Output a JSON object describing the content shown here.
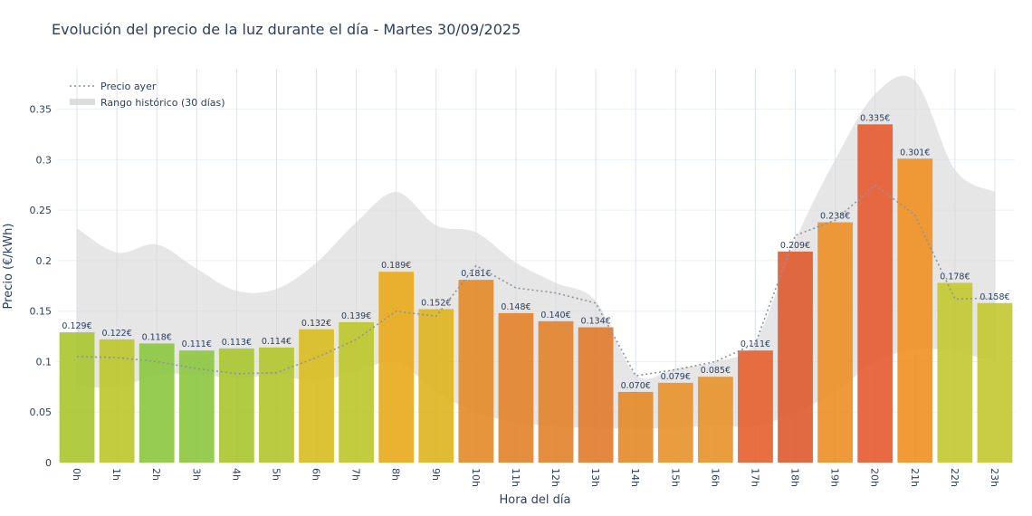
{
  "chart_data": {
    "type": "bar",
    "title": "Evolución del precio de la luz durante el día - Martes 30/09/2025",
    "xlabel": "Hora del día",
    "ylabel": "Precio (€/kWh)",
    "ylim": [
      0,
      0.39
    ],
    "yticks": [
      0,
      0.05,
      0.1,
      0.15,
      0.2,
      0.25,
      0.3,
      0.35
    ],
    "ytick_labels": [
      "0",
      "0.05",
      "0.1",
      "0.15",
      "0.2",
      "0.25",
      "0.3",
      "0.35"
    ],
    "categories": [
      "0h",
      "1h",
      "2h",
      "3h",
      "4h",
      "5h",
      "6h",
      "7h",
      "8h",
      "9h",
      "10h",
      "11h",
      "12h",
      "13h",
      "14h",
      "15h",
      "16h",
      "17h",
      "18h",
      "19h",
      "20h",
      "21h",
      "22h",
      "23h"
    ],
    "values": [
      0.129,
      0.122,
      0.118,
      0.111,
      0.113,
      0.114,
      0.132,
      0.139,
      0.189,
      0.152,
      0.181,
      0.148,
      0.14,
      0.134,
      0.07,
      0.079,
      0.085,
      0.111,
      0.209,
      0.238,
      0.335,
      0.301,
      0.178,
      0.158
    ],
    "value_labels": [
      "0.129€",
      "0.122€",
      "0.118€",
      "0.111€",
      "0.113€",
      "0.114€",
      "0.132€",
      "0.139€",
      "0.189€",
      "0.152€",
      "0.181€",
      "0.148€",
      "0.140€",
      "0.134€",
      "0.070€",
      "0.079€",
      "0.085€",
      "0.111€",
      "0.209€",
      "0.238€",
      "0.335€",
      "0.301€",
      "0.178€",
      "0.158€"
    ],
    "bar_colors": [
      "#a9c52f",
      "#bcc52a",
      "#8cc63f",
      "#8cc63f",
      "#a9c52f",
      "#b3c52c",
      "#d8bb1f",
      "#bcc52a",
      "#e8aa1a",
      "#ddb41d",
      "#e38a28",
      "#e3822a",
      "#e3822a",
      "#e07a2c",
      "#e38a28",
      "#e8922a",
      "#e8922a",
      "#e65f2e",
      "#df5a2e",
      "#ec8e25",
      "#e45a2e",
      "#ee8f22",
      "#c2c830",
      "#c2c830"
    ],
    "series": [
      {
        "name": "Precio ayer",
        "style": "dotted",
        "color": "#8a94a0",
        "values": [
          0.105,
          0.104,
          0.1,
          0.093,
          0.088,
          0.089,
          0.104,
          0.122,
          0.15,
          0.145,
          0.195,
          0.173,
          0.168,
          0.158,
          0.086,
          0.092,
          0.1,
          0.118,
          0.225,
          0.24,
          0.275,
          0.245,
          0.162,
          0.163
        ]
      },
      {
        "name": "Rango histórico (30 días)",
        "style": "band",
        "color": "#d9d9d9",
        "upper": [
          0.232,
          0.208,
          0.216,
          0.192,
          0.17,
          0.172,
          0.198,
          0.238,
          0.268,
          0.235,
          0.228,
          0.198,
          0.178,
          0.16,
          0.087,
          0.093,
          0.1,
          0.12,
          0.22,
          0.3,
          0.365,
          0.378,
          0.29,
          0.268
        ],
        "lower": [
          0.077,
          0.074,
          0.087,
          0.087,
          0.084,
          0.086,
          0.081,
          0.09,
          0.1,
          0.07,
          0.05,
          0.04,
          0.036,
          0.034,
          0.034,
          0.034,
          0.037,
          0.036,
          0.05,
          0.07,
          0.1,
          0.112,
          0.11,
          0.099
        ]
      }
    ],
    "legend": {
      "position": "top-left",
      "entries": [
        "Precio ayer",
        "Rango histórico (30 días)"
      ]
    },
    "grid": true
  }
}
